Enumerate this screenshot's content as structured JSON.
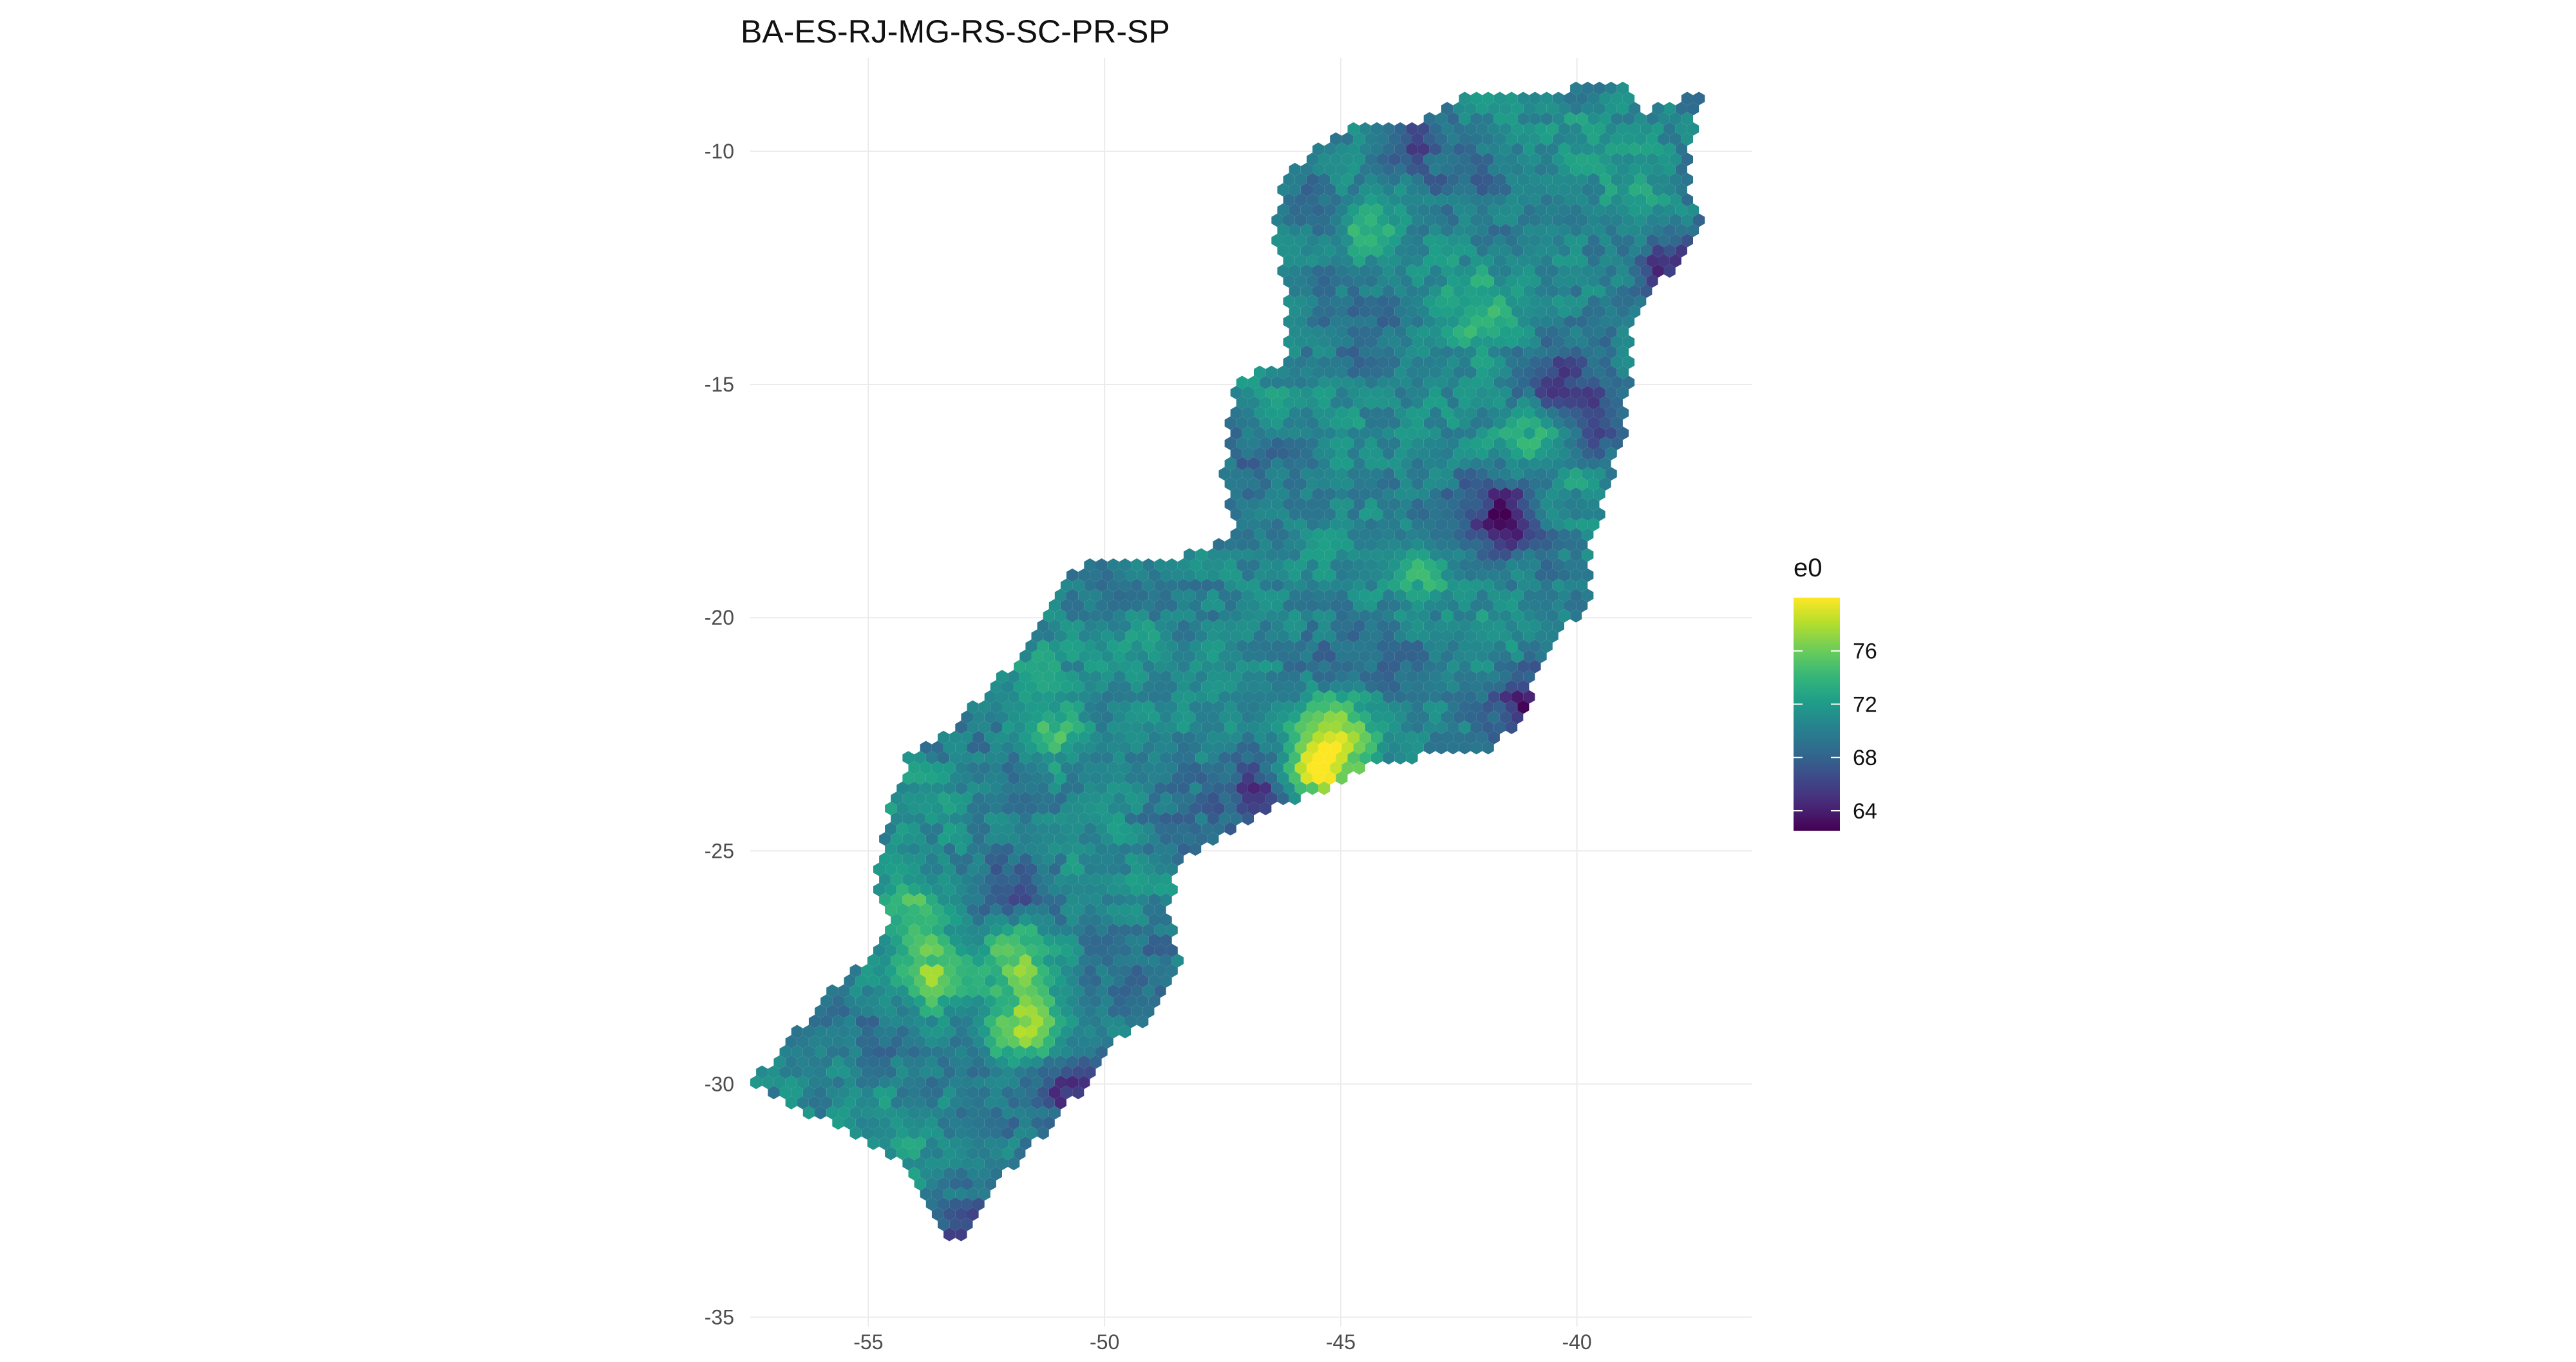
{
  "chart_data": {
    "type": "heatmap",
    "subtype": "hexbin-map",
    "title": "BA-ES-RJ-MG-RS-SC-PR-SP",
    "xlabel": "",
    "ylabel": "",
    "x_ticks": [
      -55,
      -50,
      -45,
      -40
    ],
    "x_tick_labels": [
      "-55",
      "-50",
      "-45",
      "-40"
    ],
    "y_ticks": [
      -10,
      -15,
      -20,
      -25,
      -30,
      -35
    ],
    "y_tick_labels": [
      "-10",
      "-15",
      "-20",
      "-25",
      "-30",
      "-35"
    ],
    "xlim": [
      -57.5,
      -36.3
    ],
    "ylim": [
      -35.2,
      -8.0
    ],
    "grid": true,
    "legend": {
      "title": "e0",
      "position": "right",
      "ticks": [
        76,
        72,
        68,
        64
      ],
      "tick_labels": [
        "76",
        "72",
        "68",
        "64"
      ],
      "range": [
        62.5,
        80
      ],
      "colors": [
        "#440154",
        "#3b528b",
        "#21908d",
        "#5dc963",
        "#fde725"
      ]
    },
    "region_outline": [
      [
        -37.3,
        -8.6
      ],
      [
        -38.6,
        -9.2
      ],
      [
        -39.0,
        -8.6
      ],
      [
        -40.0,
        -8.6
      ],
      [
        -40.8,
        -8.8
      ],
      [
        -42.5,
        -8.8
      ],
      [
        -43.5,
        -9.5
      ],
      [
        -44.6,
        -9.3
      ],
      [
        -45.6,
        -10.0
      ],
      [
        -46.3,
        -10.6
      ],
      [
        -46.4,
        -11.8
      ],
      [
        -46.2,
        -13.0
      ],
      [
        -46.2,
        -14.5
      ],
      [
        -47.1,
        -14.8
      ],
      [
        -47.4,
        -15.6
      ],
      [
        -47.5,
        -17.2
      ],
      [
        -47.2,
        -18.2
      ],
      [
        -48.0,
        -18.6
      ],
      [
        -49.5,
        -18.8
      ],
      [
        -50.4,
        -18.7
      ],
      [
        -51.2,
        -19.6
      ],
      [
        -52.0,
        -21.0
      ],
      [
        -53.2,
        -22.3
      ],
      [
        -54.2,
        -23.0
      ],
      [
        -54.6,
        -24.3
      ],
      [
        -54.9,
        -25.5
      ],
      [
        -54.6,
        -26.5
      ],
      [
        -55.0,
        -27.3
      ],
      [
        -56.0,
        -28.2
      ],
      [
        -57.5,
        -30.0
      ],
      [
        -57.0,
        -30.3
      ],
      [
        -55.0,
        -31.2
      ],
      [
        -54.0,
        -32.0
      ],
      [
        -53.4,
        -33.2
      ],
      [
        -53.4,
        -33.8
      ],
      [
        -52.6,
        -32.6
      ],
      [
        -51.8,
        -31.6
      ],
      [
        -51.0,
        -30.8
      ],
      [
        -50.3,
        -29.9
      ],
      [
        -49.7,
        -29.1
      ],
      [
        -48.8,
        -28.4
      ],
      [
        -48.4,
        -27.3
      ],
      [
        -48.6,
        -26.2
      ],
      [
        -48.4,
        -25.3
      ],
      [
        -47.8,
        -24.9
      ],
      [
        -46.4,
        -24.0
      ],
      [
        -45.4,
        -23.8
      ],
      [
        -44.4,
        -23.2
      ],
      [
        -43.4,
        -23.0
      ],
      [
        -42.0,
        -22.9
      ],
      [
        -41.0,
        -22.1
      ],
      [
        -40.9,
        -21.3
      ],
      [
        -40.3,
        -20.4
      ],
      [
        -39.7,
        -19.5
      ],
      [
        -39.7,
        -18.4
      ],
      [
        -39.3,
        -17.2
      ],
      [
        -39.0,
        -16.1
      ],
      [
        -38.9,
        -15.0
      ],
      [
        -38.9,
        -13.9
      ],
      [
        -38.3,
        -13.0
      ],
      [
        -37.8,
        -12.2
      ],
      [
        -37.2,
        -11.5
      ],
      [
        -37.6,
        -11.2
      ],
      [
        -37.6,
        -10.2
      ]
    ],
    "hotspots": [
      {
        "lon": -41.5,
        "lat": -17.8,
        "value": 64.5
      },
      {
        "lon": -39.5,
        "lat": -16.0,
        "value": 66.5
      },
      {
        "lon": -40.5,
        "lat": -15.0,
        "value": 67.0
      },
      {
        "lon": -43.5,
        "lat": -9.6,
        "value": 67.0
      },
      {
        "lon": -45.3,
        "lat": -11.2,
        "value": 67.5
      },
      {
        "lon": -38.0,
        "lat": -12.5,
        "value": 65.0
      },
      {
        "lon": -41.0,
        "lat": -21.9,
        "value": 64.0
      },
      {
        "lon": -44.5,
        "lat": -11.5,
        "value": 73.5
      },
      {
        "lon": -42.0,
        "lat": -13.6,
        "value": 74.0
      },
      {
        "lon": -38.6,
        "lat": -11.2,
        "value": 74.0
      },
      {
        "lon": -41.0,
        "lat": -16.0,
        "value": 73.5
      },
      {
        "lon": -45.5,
        "lat": -23.2,
        "value": 80.0
      },
      {
        "lon": -45.0,
        "lat": -22.3,
        "value": 76.5
      },
      {
        "lon": -46.6,
        "lat": -23.6,
        "value": 66.5
      },
      {
        "lon": -52.0,
        "lat": -26.0,
        "value": 67.5
      },
      {
        "lon": -51.8,
        "lat": -27.2,
        "value": 76.0
      },
      {
        "lon": -51.7,
        "lat": -28.9,
        "value": 77.0
      },
      {
        "lon": -53.7,
        "lat": -27.7,
        "value": 76.5
      },
      {
        "lon": -54.0,
        "lat": -26.3,
        "value": 75.5
      },
      {
        "lon": -51.0,
        "lat": -22.5,
        "value": 75.0
      },
      {
        "lon": -49.5,
        "lat": -20.5,
        "value": 73.5
      },
      {
        "lon": -48.8,
        "lat": -24.8,
        "value": 68.0
      },
      {
        "lon": -50.6,
        "lat": -30.0,
        "value": 65.0
      },
      {
        "lon": -53.0,
        "lat": -33.0,
        "value": 67.5
      },
      {
        "lon": -43.0,
        "lat": -20.2,
        "value": 69.0
      },
      {
        "lon": -43.3,
        "lat": -19.0,
        "value": 73.5
      }
    ]
  }
}
